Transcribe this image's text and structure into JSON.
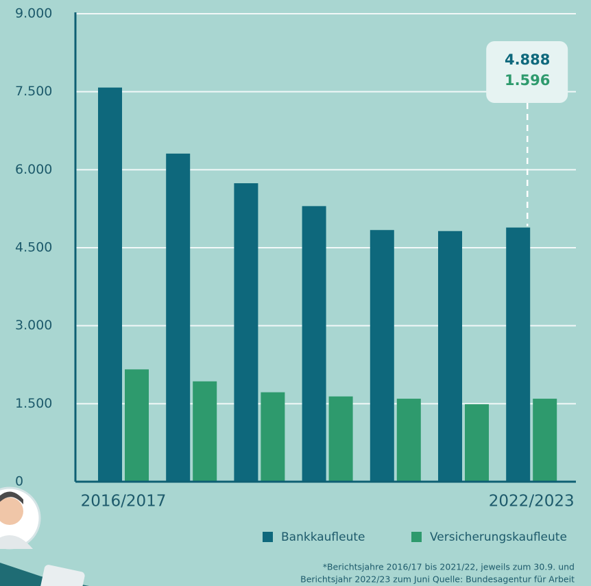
{
  "chart_data": {
    "type": "bar",
    "categories": [
      "2016/2017",
      null,
      null,
      null,
      null,
      null,
      "2022/2023"
    ],
    "series": [
      {
        "name": "Bankkaufleute",
        "color": "#0e687c",
        "values": [
          7580,
          6310,
          5740,
          5300,
          4840,
          4820,
          4888
        ],
        "value_labels": [
          null,
          null,
          null,
          null,
          null,
          null,
          "4.888"
        ]
      },
      {
        "name": "Versicherungskaufleute",
        "color": "#2e9a6d",
        "values": [
          2160,
          1930,
          1720,
          1640,
          1596,
          1490,
          1596
        ],
        "value_labels": [
          null,
          null,
          null,
          null,
          null,
          null,
          "1.596"
        ]
      }
    ],
    "ylim": [
      0,
      9000
    ],
    "yticks": [
      0,
      {
        "value": 1500,
        "label": "1.500"
      },
      {
        "value": 3000,
        "label": "3.000"
      },
      {
        "value": 4500,
        "label": "4.500"
      },
      {
        "value": 6000,
        "label": "6.000"
      },
      {
        "value": 7500,
        "label": "7.500"
      },
      {
        "value": 9000,
        "label": "9.000"
      }
    ],
    "grid": true,
    "legend": "bottom-right",
    "footnote": [
      "*Berichtsjahre 2016/17 bis 2021/22, jeweils zum 30.9. und",
      "Berichtsjahr 2022/23 zum Juni Quelle: Bundesagentur für Arbeit"
    ]
  }
}
